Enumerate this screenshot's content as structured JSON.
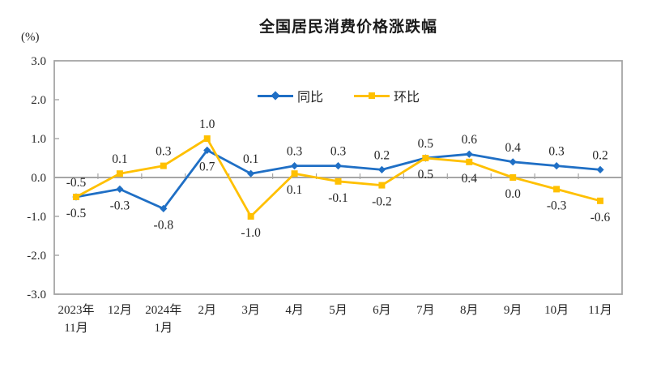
{
  "chart_data": {
    "type": "line",
    "title": "全国居民消费价格涨跌幅",
    "unit_label": "(%)",
    "categories": [
      [
        "2023年",
        "11月"
      ],
      [
        "12月"
      ],
      [
        "2024年",
        "1月"
      ],
      [
        "2月"
      ],
      [
        "3月"
      ],
      [
        "4月"
      ],
      [
        "5月"
      ],
      [
        "6月"
      ],
      [
        "7月"
      ],
      [
        "8月"
      ],
      [
        "9月"
      ],
      [
        "10月"
      ],
      [
        "11月"
      ]
    ],
    "series": [
      {
        "key": "yoy",
        "name": "同比",
        "color": "#1F6FC5",
        "marker": "diamond",
        "values": [
          -0.5,
          -0.3,
          -0.8,
          0.7,
          0.1,
          0.3,
          0.3,
          0.2,
          0.5,
          0.6,
          0.4,
          0.3,
          0.2
        ],
        "label_positions": [
          "below",
          "below",
          "below",
          "below",
          "above",
          "above",
          "above",
          "above",
          "above",
          "above",
          "above",
          "above",
          "above"
        ]
      },
      {
        "key": "mom",
        "name": "环比",
        "color": "#FFC000",
        "marker": "square",
        "values": [
          -0.5,
          0.1,
          0.3,
          1.0,
          -1.0,
          0.1,
          -0.1,
          -0.2,
          0.5,
          0.4,
          0.0,
          -0.3,
          -0.6
        ],
        "label_positions": [
          "above",
          "above",
          "above",
          "above",
          "below",
          "below",
          "below",
          "below",
          "below",
          "below",
          "below",
          "below",
          "below"
        ]
      }
    ],
    "ylim": [
      -3.0,
      3.0
    ],
    "ytick_labels": [
      "3.0",
      "2.0",
      "1.0",
      "0.0",
      "-1.0",
      "-2.0",
      "-3.0"
    ],
    "grid": false,
    "legend_position": "top-center",
    "axis_color": "#A6A6A6",
    "text_color": "#262626",
    "background_color": "#FFFFFF"
  }
}
